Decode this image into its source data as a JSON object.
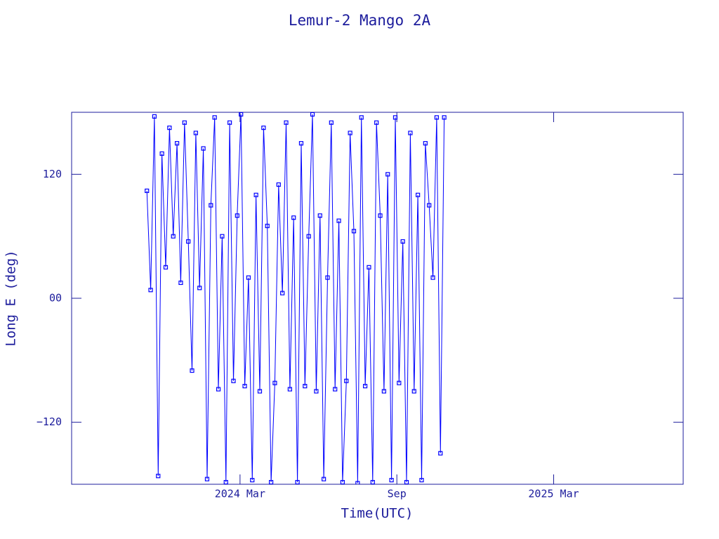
{
  "chart_data": {
    "type": "line",
    "title": "Lemur-2 Mango 2A",
    "x_label": "Time(UTC)",
    "y_label": "Long E (deg)",
    "color": "#0000ff",
    "x": [
      2023.87,
      2023.882,
      2023.894,
      2023.906,
      2023.918,
      2023.93,
      2023.942,
      2023.954,
      2023.966,
      2023.978,
      2023.99,
      2024.002,
      2024.014,
      2024.026,
      2024.038,
      2024.05,
      2024.062,
      2024.074,
      2024.086,
      2024.098,
      2024.11,
      2024.122,
      2024.134,
      2024.146,
      2024.158,
      2024.17,
      2024.182,
      2024.194,
      2024.206,
      2024.218,
      2024.23,
      2024.242,
      2024.254,
      2024.266,
      2024.278,
      2024.29,
      2024.302,
      2024.314,
      2024.326,
      2024.338,
      2024.35,
      2024.362,
      2024.374,
      2024.386,
      2024.398,
      2024.41,
      2024.422,
      2024.434,
      2024.446,
      2024.458,
      2024.47,
      2024.482,
      2024.494,
      2024.506,
      2024.518,
      2024.53,
      2024.542,
      2024.554,
      2024.566,
      2024.578,
      2024.59,
      2024.602,
      2024.614,
      2024.626,
      2024.638,
      2024.65,
      2024.662,
      2024.674,
      2024.686,
      2024.698,
      2024.71,
      2024.722,
      2024.734,
      2024.746,
      2024.758,
      2024.77,
      2024.782,
      2024.794,
      2024.806,
      2024.818
    ],
    "values": [
      104,
      8,
      176,
      -172,
      140,
      30,
      165,
      60,
      150,
      15,
      170,
      55,
      -70,
      160,
      10,
      145,
      -175,
      90,
      175,
      -88,
      60,
      -178,
      170,
      -80,
      80,
      178,
      -85,
      20,
      -176,
      100,
      -90,
      165,
      70,
      -178,
      -82,
      110,
      5,
      170,
      -88,
      78,
      -178,
      150,
      -85,
      60,
      178,
      -90,
      80,
      -175,
      20,
      170,
      -88,
      75,
      -178,
      -80,
      160,
      65,
      -179,
      175,
      -85,
      30,
      -178,
      170,
      80,
      -90,
      120,
      -176,
      175,
      -82,
      55,
      -178,
      160,
      -90,
      100,
      -176,
      150,
      90,
      20,
      175,
      -150,
      175
    ],
    "xlim": [
      2023.63,
      2025.58
    ],
    "xticks": [
      {
        "value": 2024.167,
        "label": "2024 Mar"
      },
      {
        "value": 2024.667,
        "label": "Sep"
      },
      {
        "value": 2025.167,
        "label": "2025 Mar"
      }
    ],
    "ylim": [
      -180,
      180
    ],
    "yticks": [
      {
        "value": -120,
        "label": "−120"
      },
      {
        "value": 0,
        "label": "00"
      },
      120
    ]
  }
}
